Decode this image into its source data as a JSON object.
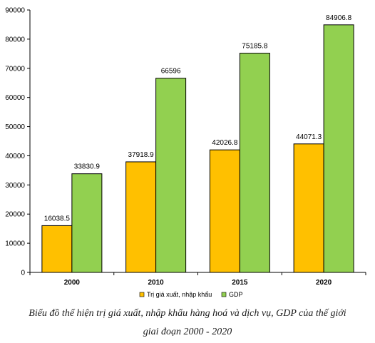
{
  "chart_data": {
    "type": "bar",
    "categories": [
      "2000",
      "2010",
      "2015",
      "2020"
    ],
    "series": [
      {
        "name": "Trị giá xuất, nhập khẩu",
        "values": [
          16038.5,
          37918.9,
          42026.8,
          44071.3
        ],
        "value_labels": [
          "16038.5",
          "37918.9",
          "42026.8",
          "44071.3"
        ],
        "color": "#FFC000"
      },
      {
        "name": "GDP",
        "values": [
          33830.9,
          66596,
          75185.8,
          84906.8
        ],
        "value_labels": [
          "33830.9",
          "66596",
          "75185.8",
          "84906.8"
        ],
        "color": "#92D050"
      }
    ],
    "ylim": [
      0,
      90000
    ],
    "yticks": [
      0,
      10000,
      20000,
      30000,
      40000,
      50000,
      60000,
      70000,
      80000,
      90000
    ],
    "ytick_labels": [
      "0",
      "10000",
      "20000",
      "30000",
      "40000",
      "50000",
      "60000",
      "70000",
      "80000",
      "90000"
    ],
    "xlabel": "",
    "ylabel": "",
    "grid": false,
    "legend_position": "bottom",
    "bar_outline_color": "#000000"
  },
  "caption": {
    "line1": "Biểu đồ thể hiện trị giá xuất, nhập khẩu hàng hoá và dịch vụ, GDP của thế giới",
    "line2": "giai đoạn 2000 - 2020"
  }
}
